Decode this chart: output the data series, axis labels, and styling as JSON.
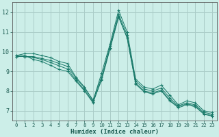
{
  "background_color": "#cceee8",
  "grid_color": "#aaccc8",
  "line_color": "#1a7a6a",
  "xlabel": "Humidex (Indice chaleur)",
  "xlim": [
    -0.5,
    23.5
  ],
  "ylim": [
    6.5,
    12.5
  ],
  "yticks": [
    7,
    8,
    9,
    10,
    11,
    12
  ],
  "xticks": [
    0,
    1,
    2,
    3,
    4,
    5,
    6,
    7,
    8,
    9,
    10,
    11,
    12,
    13,
    14,
    15,
    16,
    17,
    18,
    19,
    20,
    21,
    22,
    23
  ],
  "series": [
    [
      9.8,
      9.9,
      9.9,
      9.8,
      9.7,
      9.5,
      9.4,
      8.7,
      8.2,
      7.5,
      8.9,
      10.4,
      12.1,
      11.0,
      8.6,
      8.2,
      8.1,
      8.3,
      7.8,
      7.3,
      7.5,
      7.4,
      7.0,
      6.9
    ],
    [
      9.8,
      9.8,
      9.6,
      9.5,
      9.3,
      9.1,
      9.0,
      8.5,
      8.0,
      7.4,
      8.6,
      10.2,
      11.8,
      10.7,
      8.4,
      8.0,
      7.9,
      8.05,
      7.55,
      7.2,
      7.35,
      7.25,
      6.85,
      6.75
    ],
    [
      9.75,
      9.75,
      9.75,
      9.65,
      9.55,
      9.4,
      9.25,
      8.65,
      8.15,
      7.55,
      8.7,
      10.3,
      11.9,
      10.85,
      8.5,
      8.1,
      8.0,
      8.15,
      7.65,
      7.25,
      7.4,
      7.3,
      6.92,
      6.82
    ],
    [
      9.75,
      9.75,
      9.7,
      9.6,
      9.45,
      9.28,
      9.12,
      8.55,
      8.05,
      7.45,
      8.55,
      10.15,
      11.75,
      10.7,
      8.35,
      7.95,
      7.85,
      8.0,
      7.5,
      7.15,
      7.3,
      7.2,
      6.82,
      6.72
    ]
  ]
}
